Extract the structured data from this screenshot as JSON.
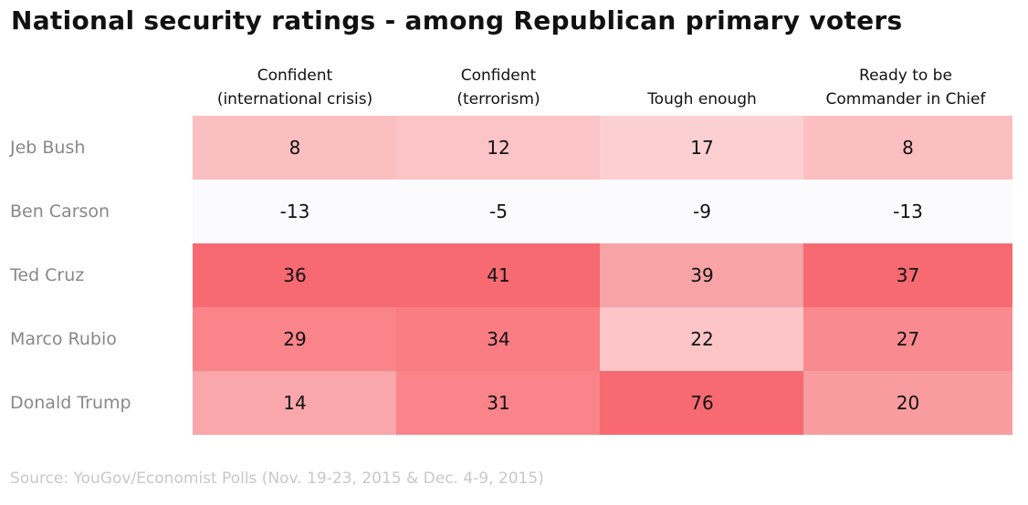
{
  "title": "National security ratings - among Republican primary voters",
  "source": "Source: YouGov/Economist Polls (Nov. 19-23, 2015 & Dec. 4-9, 2015)",
  "chart_data": {
    "type": "heatmap",
    "title": "National security ratings - among Republican primary voters",
    "columns": [
      "Confident\n(international crisis)",
      "Confident\n(terrorism)",
      "Tough enough",
      "Ready to be\nCommander in Chief"
    ],
    "rows": [
      "Jeb Bush",
      "Ben Carson",
      "Ted Cruz",
      "Marco Rubio",
      "Donald Trump"
    ],
    "values": [
      [
        8,
        12,
        17,
        8
      ],
      [
        -13,
        -5,
        -9,
        -13
      ],
      [
        36,
        41,
        39,
        37
      ],
      [
        29,
        34,
        22,
        27
      ],
      [
        14,
        31,
        76,
        20
      ]
    ],
    "cell_colors": [
      [
        "#fbbfc2",
        "#fbc4c6",
        "#fcd0d2",
        "#fbbfc2"
      ],
      [
        "#fbfbfd",
        "#fbfbfd",
        "#fbfbfd",
        "#fbfbfd"
      ],
      [
        "#f76a71",
        "#f76a71",
        "#f8a3a6",
        "#f76a71"
      ],
      [
        "#f9848a",
        "#f97d83",
        "#fcc6c9",
        "#f98a8f"
      ],
      [
        "#f9a7aa",
        "#f98489",
        "#f76a71",
        "#f99c9f"
      ]
    ]
  }
}
